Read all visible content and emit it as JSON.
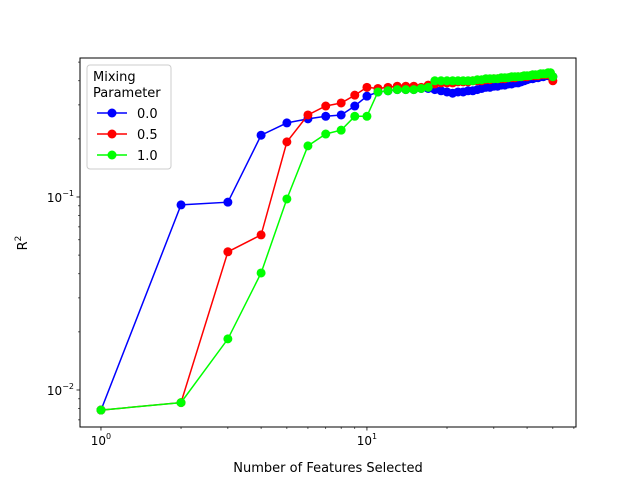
{
  "chart_data": {
    "type": "line",
    "title": "",
    "xlabel": "Number of Features Selected",
    "ylabel": "R",
    "ylabel_superscript": "2",
    "xscale": "log",
    "yscale": "log",
    "xlim": [
      0.834,
      61.1
    ],
    "ylim": [
      0.00643,
      0.525
    ],
    "grid": false,
    "x_tick_labels": [
      {
        "value": 1,
        "base": "10",
        "exp": "0"
      },
      {
        "value": 10,
        "base": "10",
        "exp": "1"
      }
    ],
    "y_tick_labels": [
      {
        "value": 0.01,
        "base": "10",
        "exp": "−2"
      },
      {
        "value": 0.1,
        "base": "10",
        "exp": "−1"
      }
    ],
    "legend": {
      "title_line1": "Mixing",
      "title_line2": "Parameter",
      "placement": "upper-left"
    },
    "x": [
      1,
      2,
      3,
      4,
      5,
      6,
      7,
      8,
      9,
      10,
      11,
      12,
      13,
      14,
      15,
      16,
      17,
      18,
      19,
      20,
      21,
      22,
      23,
      24,
      25,
      26,
      27,
      28,
      29,
      30,
      31,
      32,
      33,
      34,
      35,
      36,
      37,
      38,
      39,
      40,
      41,
      42,
      43,
      44,
      45,
      46,
      47,
      48,
      49,
      50
    ],
    "series": [
      {
        "name": "0.0",
        "color": "#0000ff",
        "values": [
          0.00787,
          0.091,
          0.094,
          0.209,
          0.242,
          0.254,
          0.262,
          0.266,
          0.296,
          0.333,
          0.35,
          0.355,
          0.36,
          0.36,
          0.36,
          0.365,
          0.365,
          0.36,
          0.355,
          0.35,
          0.345,
          0.35,
          0.35,
          0.355,
          0.355,
          0.36,
          0.365,
          0.37,
          0.37,
          0.375,
          0.375,
          0.38,
          0.38,
          0.385,
          0.385,
          0.39,
          0.39,
          0.395,
          0.4,
          0.405,
          0.41,
          0.41,
          0.415,
          0.415,
          0.42,
          0.42,
          0.425,
          0.425,
          0.43,
          0.42
        ]
      },
      {
        "name": "0.5",
        "color": "#ff0000",
        "values": [
          0.00787,
          0.0086,
          0.052,
          0.0636,
          0.193,
          0.266,
          0.296,
          0.307,
          0.337,
          0.37,
          0.365,
          0.37,
          0.375,
          0.375,
          0.375,
          0.37,
          0.38,
          0.385,
          0.39,
          0.39,
          0.39,
          0.395,
          0.395,
          0.395,
          0.4,
          0.4,
          0.4,
          0.405,
          0.405,
          0.41,
          0.41,
          0.41,
          0.41,
          0.415,
          0.415,
          0.415,
          0.42,
          0.42,
          0.42,
          0.42,
          0.425,
          0.425,
          0.425,
          0.425,
          0.43,
          0.43,
          0.43,
          0.43,
          0.43,
          0.4
        ]
      },
      {
        "name": "1.0",
        "color": "#00ff00",
        "values": [
          0.00787,
          0.0086,
          0.0184,
          0.0404,
          0.0977,
          0.184,
          0.212,
          0.222,
          0.262,
          0.262,
          0.35,
          0.355,
          0.36,
          0.36,
          0.36,
          0.365,
          0.37,
          0.4,
          0.4,
          0.4,
          0.4,
          0.4,
          0.4,
          0.4,
          0.4,
          0.405,
          0.405,
          0.41,
          0.41,
          0.41,
          0.41,
          0.415,
          0.415,
          0.415,
          0.42,
          0.42,
          0.42,
          0.42,
          0.425,
          0.425,
          0.425,
          0.43,
          0.43,
          0.43,
          0.435,
          0.435,
          0.435,
          0.44,
          0.44,
          0.42
        ]
      }
    ]
  }
}
